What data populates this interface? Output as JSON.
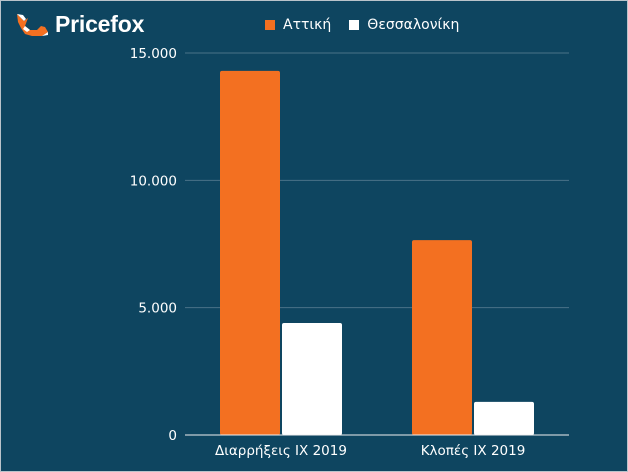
{
  "brand": {
    "name": "Pricefox",
    "icon": "fox-icon",
    "icon_color": "#f37021"
  },
  "colors": {
    "background": "#0e4560",
    "grid": "#4a7288",
    "baseline": "#f0f0f0"
  },
  "chart_data": {
    "type": "bar",
    "title": "",
    "xlabel": "",
    "ylabel": "",
    "categories": [
      "Διαρρήξεις ΙΧ 2019",
      "Κλοπές ΙΧ 2019"
    ],
    "series": [
      {
        "name": "Αττική",
        "color": "#f37021",
        "values": [
          14300,
          7650
        ]
      },
      {
        "name": "Θεσσαλονίκη",
        "color": "#ffffff",
        "values": [
          4400,
          1300
        ]
      }
    ],
    "ylim": [
      0,
      15000
    ],
    "yticks": [
      0,
      5000,
      10000,
      15000
    ],
    "ytick_labels": [
      "0",
      "5.000",
      "10.000",
      "15.000"
    ],
    "grid": true,
    "legend_position": "top"
  }
}
